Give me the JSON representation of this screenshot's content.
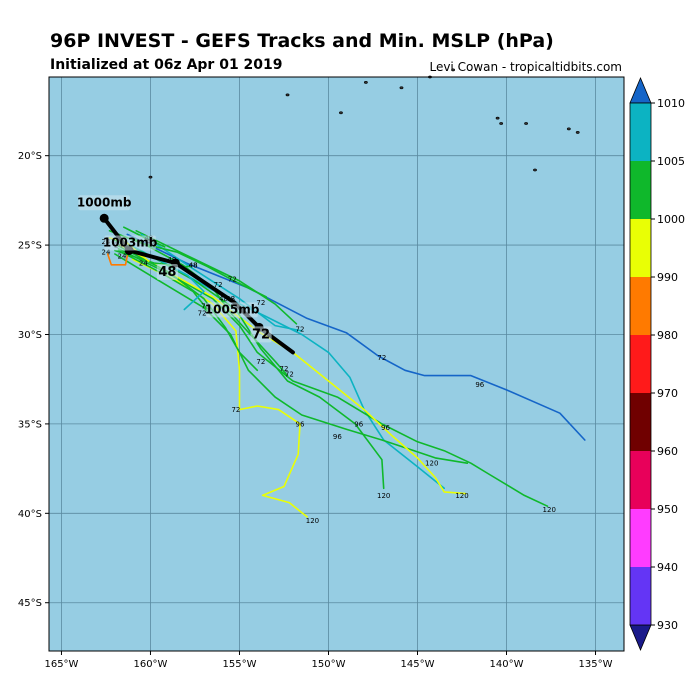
{
  "header": {
    "title": "96P INVEST - GEFS Tracks and Min. MSLP (hPa)",
    "subtitle": "Initialized at 06z Apr 01 2019",
    "credit": "Levi Cowan - tropicaltidbits.com"
  },
  "map": {
    "lon_range": [
      -165.7,
      -133.4
    ],
    "lat_range": [
      -47.7,
      -15.6
    ],
    "lon_ticks": [
      -165,
      -160,
      -155,
      -150,
      -145,
      -140,
      -135
    ],
    "lon_tick_labels": [
      "165°W",
      "160°W",
      "155°W",
      "150°W",
      "145°W",
      "140°W",
      "135°W"
    ],
    "lat_ticks": [
      -20,
      -25,
      -30,
      -35,
      -40,
      -45
    ],
    "lat_tick_labels": [
      "20°S",
      "25°S",
      "30°S",
      "35°S",
      "40°S",
      "45°S"
    ],
    "ocean_color": "#96cde3",
    "grid_color": "#5a8aa0"
  },
  "colorbar": {
    "levels": [
      930,
      940,
      950,
      960,
      970,
      980,
      990,
      1000,
      1005,
      1010
    ],
    "labels": [
      "930",
      "940",
      "950",
      "960",
      "970",
      "980",
      "990",
      "1000",
      "1005",
      "1010"
    ],
    "colors": [
      "#6435f5",
      "#ff3cff",
      "#e8005a",
      "#700000",
      "#ff1a1a",
      "#ff7a00",
      "#e9ff05",
      "#0fb82b",
      "#0cb3c2"
    ],
    "end_colors": {
      "low": "#1a1a8a",
      "high": "#1565c8"
    }
  },
  "chart_data": {
    "type": "track_map",
    "mean_track": {
      "name": "ensemble mean",
      "points": [
        [
          -162.6,
          -23.5
        ],
        [
          -161.2,
          -25.3
        ],
        [
          -158.6,
          -26.0
        ],
        [
          -155.3,
          -28.2
        ],
        [
          -153.9,
          -29.6
        ],
        [
          -152.0,
          -31.0
        ]
      ],
      "labels": [
        {
          "text": "1000mb",
          "lon": -162.6,
          "lat": -23.5
        },
        {
          "text": "1003mb",
          "lon": -161.2,
          "lat": -25.3
        },
        {
          "text": "48",
          "lon": -158.6,
          "lat": -26.0
        },
        {
          "text": "1005mb",
          "lon": -153.9,
          "lat": -29.6
        },
        {
          "text": "72",
          "lon": -153.9,
          "lat": -29.6
        }
      ]
    },
    "members": [
      {
        "color": "#1565c8",
        "points": [
          [
            -161.3,
            -24.4
          ],
          [
            -158.0,
            -26.0
          ],
          [
            -154.5,
            -27.4
          ],
          [
            -151.2,
            -29.1
          ],
          [
            -149.0,
            -29.9
          ],
          [
            -147.2,
            -31.2
          ],
          [
            -145.7,
            -32.0
          ],
          [
            -144.6,
            -32.3
          ],
          [
            -142.0,
            -32.3
          ],
          [
            -140.0,
            -33.1
          ],
          [
            -137.0,
            -34.4
          ],
          [
            -135.6,
            -35.9
          ]
        ],
        "labels": [
          {
            "text": "72",
            "lon": -147.0,
            "lat": -31.3
          },
          {
            "text": "96",
            "lon": -141.5,
            "lat": -32.8
          }
        ]
      },
      {
        "color": "#0cb3c2",
        "points": [
          [
            -161.5,
            -24.8
          ],
          [
            -158.5,
            -26.4
          ],
          [
            -156.0,
            -27.8
          ],
          [
            -153.5,
            -29.0
          ],
          [
            -151.5,
            -30.0
          ],
          [
            -150.0,
            -31.0
          ],
          [
            -148.8,
            -32.4
          ],
          [
            -148.0,
            -34.2
          ],
          [
            -146.9,
            -35.9
          ],
          [
            -145.0,
            -37.4
          ],
          [
            -143.5,
            -38.6
          ]
        ],
        "labels": [
          {
            "text": "72",
            "lon": -151.6,
            "lat": -29.7
          }
        ]
      },
      {
        "color": "#0fb82b",
        "points": [
          [
            -161.8,
            -25.2
          ],
          [
            -159.0,
            -26.6
          ],
          [
            -156.5,
            -28.0
          ],
          [
            -155.0,
            -29.5
          ],
          [
            -154.0,
            -31.0
          ],
          [
            -152.0,
            -32.6
          ],
          [
            -149.5,
            -33.5
          ],
          [
            -147.0,
            -35.0
          ],
          [
            -145.0,
            -36.0
          ],
          [
            -143.5,
            -36.5
          ],
          [
            -142.0,
            -37.2
          ],
          [
            -141.0,
            -37.8
          ],
          [
            -139.0,
            -39.0
          ],
          [
            -137.7,
            -39.6
          ]
        ],
        "labels": [
          {
            "text": "96",
            "lon": -146.8,
            "lat": -35.2
          },
          {
            "text": "120",
            "lon": -137.6,
            "lat": -39.8
          }
        ]
      },
      {
        "color": "#0fb82b",
        "points": [
          [
            -162.0,
            -25.5
          ],
          [
            -159.5,
            -27.0
          ],
          [
            -157.0,
            -28.5
          ],
          [
            -155.5,
            -30.0
          ],
          [
            -154.5,
            -32.0
          ],
          [
            -153.0,
            -33.5
          ],
          [
            -151.5,
            -34.5
          ],
          [
            -149.0,
            -35.3
          ],
          [
            -147.0,
            -35.9
          ],
          [
            -145.5,
            -36.4
          ],
          [
            -144.0,
            -36.9
          ],
          [
            -142.2,
            -37.2
          ]
        ],
        "labels": [
          {
            "text": "96",
            "lon": -149.5,
            "lat": -35.7
          },
          {
            "text": "120",
            "lon": -144.2,
            "lat": -37.2
          }
        ]
      },
      {
        "color": "#e9ff05",
        "points": [
          [
            -161.0,
            -25.8
          ],
          [
            -158.5,
            -27.0
          ],
          [
            -156.5,
            -28.3
          ],
          [
            -155.2,
            -29.8
          ],
          [
            -155.0,
            -32.0
          ],
          [
            -155.0,
            -34.2
          ],
          [
            -154.0,
            -34.0
          ],
          [
            -152.8,
            -34.2
          ],
          [
            -151.6,
            -35.0
          ],
          [
            -151.7,
            -36.7
          ],
          [
            -152.5,
            -38.5
          ],
          [
            -153.7,
            -39.0
          ],
          [
            -152.2,
            -39.4
          ],
          [
            -151.2,
            -40.2
          ]
        ],
        "labels": [
          {
            "text": "72",
            "lon": -155.2,
            "lat": -34.2
          },
          {
            "text": "96",
            "lon": -151.6,
            "lat": -35.0
          },
          {
            "text": "120",
            "lon": -150.9,
            "lat": -40.4
          }
        ]
      },
      {
        "color": "#e9ff05",
        "points": [
          [
            -161.7,
            -25.0
          ],
          [
            -159.0,
            -26.5
          ],
          [
            -156.5,
            -27.9
          ],
          [
            -154.0,
            -29.8
          ],
          [
            -152.0,
            -31.0
          ],
          [
            -150.0,
            -32.6
          ],
          [
            -148.0,
            -34.2
          ],
          [
            -146.5,
            -35.6
          ],
          [
            -145.0,
            -36.9
          ],
          [
            -144.0,
            -38.0
          ],
          [
            -143.5,
            -38.8
          ],
          [
            -142.3,
            -38.9
          ]
        ],
        "labels": [
          {
            "text": "96",
            "lon": -148.3,
            "lat": -35.0
          },
          {
            "text": "120",
            "lon": -142.5,
            "lat": -39.0
          }
        ]
      },
      {
        "color": "#0fb82b",
        "points": [
          [
            -162.3,
            -24.6
          ],
          [
            -160.0,
            -25.6
          ],
          [
            -157.5,
            -27.0
          ],
          [
            -155.2,
            -28.6
          ],
          [
            -153.8,
            -30.8
          ],
          [
            -152.3,
            -32.6
          ],
          [
            -150.5,
            -33.5
          ],
          [
            -148.5,
            -35.0
          ],
          [
            -147.0,
            -37.0
          ],
          [
            -146.9,
            -38.6
          ]
        ],
        "labels": [
          {
            "text": "72",
            "lon": -152.2,
            "lat": -32.2
          },
          {
            "text": "120",
            "lon": -146.9,
            "lat": -39.0
          }
        ]
      },
      {
        "color": "#0fb82b",
        "points": [
          [
            -160.8,
            -24.2
          ],
          [
            -157.5,
            -25.8
          ],
          [
            -155.0,
            -27.0
          ],
          [
            -153.0,
            -28.3
          ],
          [
            -151.8,
            -29.4
          ]
        ],
        "labels": [
          {
            "text": "72",
            "lon": -156.2,
            "lat": -27.2
          },
          {
            "text": "72",
            "lon": -153.8,
            "lat": -28.2
          }
        ]
      },
      {
        "color": "#0fb82b",
        "points": [
          [
            -161.0,
            -24.6
          ],
          [
            -158.2,
            -26.1
          ],
          [
            -156.5,
            -27.4
          ],
          [
            -155.5,
            -28.8
          ],
          [
            -154.2,
            -30.2
          ],
          [
            -153.0,
            -31.5
          ],
          [
            -152.3,
            -32.3
          ]
        ],
        "labels": [
          {
            "text": "72",
            "lon": -152.5,
            "lat": -31.9
          }
        ]
      },
      {
        "color": "#0fb82b",
        "points": [
          [
            -161.9,
            -25.0
          ],
          [
            -159.0,
            -26.5
          ],
          [
            -157.0,
            -28.0
          ],
          [
            -155.8,
            -29.6
          ],
          [
            -155.0,
            -31.0
          ],
          [
            -154.0,
            -32.0
          ]
        ],
        "labels": [
          {
            "text": "72",
            "lon": -153.8,
            "lat": -31.5
          }
        ]
      },
      {
        "color": "#0cb3c2",
        "points": [
          [
            -160.5,
            -24.4
          ],
          [
            -157.5,
            -26.4
          ],
          [
            -155.0,
            -28.0
          ],
          [
            -153.0,
            -29.5
          ],
          [
            -151.5,
            -29.8
          ]
        ],
        "labels": [
          {
            "text": "48",
            "lon": -155.9,
            "lat": -28.0
          }
        ]
      },
      {
        "color": "#0fb82b",
        "points": [
          [
            -161.8,
            -25.3
          ],
          [
            -159.5,
            -26.5
          ],
          [
            -157.6,
            -27.6
          ],
          [
            -156.8,
            -28.6
          ]
        ],
        "labels": [
          {
            "text": "72",
            "lon": -156.9,
            "lat": -28.4
          },
          {
            "text": "72",
            "lon": -157.1,
            "lat": -28.8
          }
        ]
      },
      {
        "color": "#0fb82b",
        "points": [
          [
            -162.3,
            -24.2
          ],
          [
            -160.5,
            -24.9
          ],
          [
            -158.5,
            -25.4
          ],
          [
            -156.8,
            -26.2
          ],
          [
            -155.3,
            -27.0
          ],
          [
            -153.5,
            -27.9
          ]
        ],
        "labels": [
          {
            "text": "72",
            "lon": -155.4,
            "lat": -26.9
          }
        ]
      },
      {
        "color": "#0fb82b",
        "points": [
          [
            -161.5,
            -24.0
          ],
          [
            -160.3,
            -24.6
          ],
          [
            -159.2,
            -25.1
          ]
        ],
        "labels": [
          {
            "text": "48",
            "lon": -160.1,
            "lat": -24.6
          }
        ]
      },
      {
        "color": "#0cb3c2",
        "points": [
          [
            -161.7,
            -24.9
          ],
          [
            -159.6,
            -25.8
          ],
          [
            -157.9,
            -26.7
          ],
          [
            -157.0,
            -27.6
          ],
          [
            -158.1,
            -28.6
          ]
        ],
        "labels": []
      },
      {
        "color": "#0fb82b",
        "points": [
          [
            -162.0,
            -25.3
          ],
          [
            -159.8,
            -26.0
          ],
          [
            -158.2,
            -26.2
          ],
          [
            -157.7,
            -26.2
          ]
        ],
        "labels": [
          {
            "text": "48",
            "lon": -157.6,
            "lat": -26.1
          }
        ]
      },
      {
        "color": "#e9ff05",
        "points": [
          [
            -162.3,
            -24.6
          ],
          [
            -161.4,
            -24.8
          ],
          [
            -160.7,
            -25.4
          ],
          [
            -160.1,
            -25.9
          ]
        ],
        "labels": []
      },
      {
        "color": "#ff7a00",
        "points": [
          [
            -162.4,
            -25.5
          ],
          [
            -162.2,
            -26.1
          ],
          [
            -161.4,
            -26.1
          ],
          [
            -161.3,
            -25.6
          ]
        ],
        "labels": []
      }
    ],
    "time_labels": [
      {
        "text": "24",
        "lon": -162.5,
        "lat": -24.8
      },
      {
        "text": "24",
        "lon": -161.8,
        "lat": -25.0
      },
      {
        "text": "24",
        "lon": -162.5,
        "lat": -25.4
      },
      {
        "text": "24",
        "lon": -161.6,
        "lat": -25.6
      },
      {
        "text": "24",
        "lon": -160.4,
        "lat": -26.0
      },
      {
        "text": "48",
        "lon": -160.0,
        "lat": -24.8
      },
      {
        "text": "48",
        "lon": -158.8,
        "lat": -25.8
      },
      {
        "text": "48",
        "lon": -157.6,
        "lat": -26.1
      },
      {
        "text": "48",
        "lon": -155.5,
        "lat": -28.0
      }
    ],
    "islands": [
      [
        -152.3,
        -16.6
      ],
      [
        -149.3,
        -17.6
      ],
      [
        -147.9,
        -15.9
      ],
      [
        -145.9,
        -16.2
      ],
      [
        -144.3,
        -15.6
      ],
      [
        -143.0,
        -15.2
      ],
      [
        -140.5,
        -17.9
      ],
      [
        -140.3,
        -18.2
      ],
      [
        -138.9,
        -18.2
      ],
      [
        -136.5,
        -18.5
      ],
      [
        -136.0,
        -18.7
      ],
      [
        -160.0,
        -21.2
      ],
      [
        -138.4,
        -20.8
      ]
    ]
  }
}
